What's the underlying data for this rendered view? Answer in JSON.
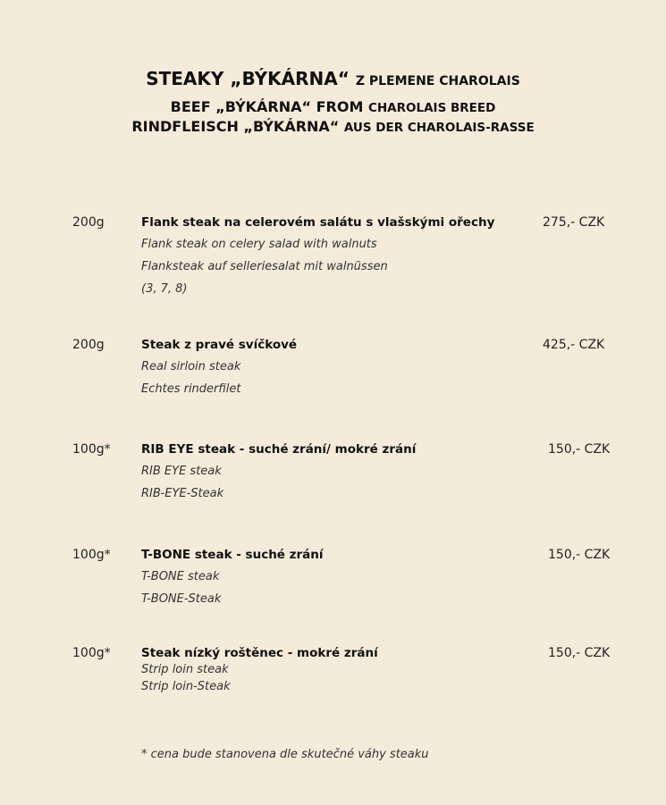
{
  "header": {
    "line1_bold": "STEAKY „BÝKÁRNA“",
    "line1_small": "Z PLEMENE CHAROLAIS",
    "line2_bold": "BEEF „BÝKÁRNA“ FROM",
    "line2_small": "CHAROLAIS BREED",
    "line3_bold": "RINDFLEISCH „BÝKÁRNA“",
    "line3_small": "AUS DER CHAROLAIS-RASSE"
  },
  "items": [
    {
      "weight": "200g",
      "title": "Flank steak na celerovém salátu s vlašskými ořechy",
      "price": "275,- CZK",
      "lines": [
        "Flank steak on celery salad with walnuts",
        "Flanksteak auf selleriesalat mit walnüssen",
        "(3, 7, 8)"
      ]
    },
    {
      "weight": "200g",
      "title": "Steak z pravé svíčkové",
      "price": "425,- CZK",
      "lines": [
        "Real sirloin steak",
        "Echtes rinderfilet"
      ]
    },
    {
      "weight": "100g*",
      "title": "RIB EYE steak - suché zrání/ mokré zrání",
      "price": "150,- CZK",
      "lines": [
        "RIB EYE steak",
        "RIB-EYE-Steak"
      ]
    },
    {
      "weight": "100g*",
      "title": "T-BONE steak - suché zrání",
      "price": "150,- CZK",
      "lines": [
        "T-BONE steak",
        "T-BONE-Steak"
      ]
    },
    {
      "weight": "100g*",
      "title": "Steak nízký roštěnec - mokré zrání",
      "price": "150,- CZK",
      "lines": [
        "Strip loin steak",
        "Strip loin-Steak"
      ]
    }
  ],
  "footnote": "* cena bude stanovena dle skutečné váhy steaku"
}
